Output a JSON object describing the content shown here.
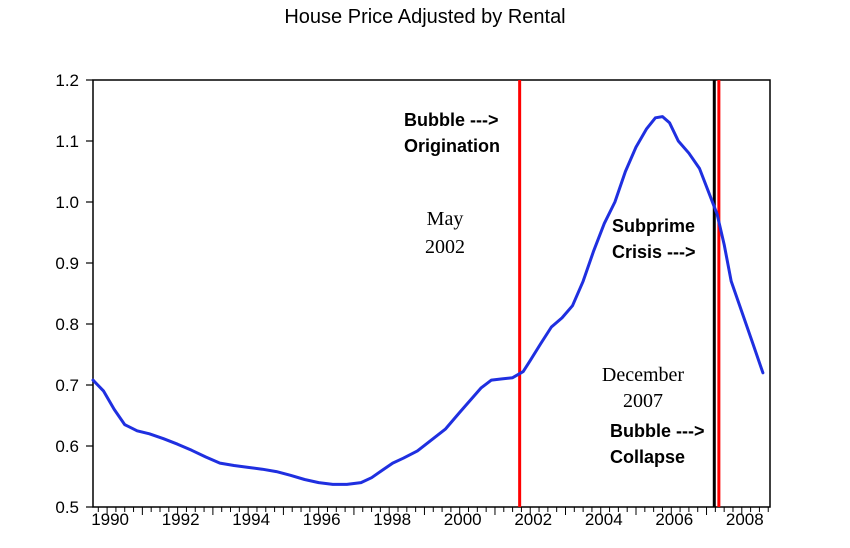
{
  "chart_data": {
    "type": "line",
    "title": "House Price Adjusted by Rental",
    "xlabel": "",
    "ylabel": "",
    "xlim": [
      1989.6,
      2008.8
    ],
    "ylim": [
      0.5,
      1.2
    ],
    "y_ticks": [
      "0.5",
      "0.6",
      "0.7",
      "0.8",
      "0.9",
      "1.0",
      "1.1",
      "1.2"
    ],
    "x_ticks": [
      "1990",
      "1992",
      "1994",
      "1996",
      "1998",
      "2000",
      "2002",
      "2004",
      "2006",
      "2008"
    ],
    "series": [
      {
        "name": "House Price Adjusted by Rental",
        "color": "#1f2fe0",
        "x": [
          1989.6,
          1989.9,
          1990.2,
          1990.5,
          1990.85,
          1991.2,
          1991.6,
          1992.0,
          1992.4,
          1992.8,
          1993.2,
          1993.6,
          1994.0,
          1994.4,
          1994.8,
          1995.2,
          1995.6,
          1996.0,
          1996.4,
          1996.8,
          1997.2,
          1997.5,
          1997.8,
          1998.1,
          1998.4,
          1998.8,
          1999.2,
          1999.6,
          2000.0,
          2000.3,
          2000.6,
          2000.9,
          2001.2,
          2001.5,
          2001.8,
          2002.0,
          2002.3,
          2002.6,
          2002.9,
          2003.2,
          2003.5,
          2003.8,
          2004.1,
          2004.4,
          2004.7,
          2005.0,
          2005.3,
          2005.55,
          2005.75,
          2005.95,
          2006.2,
          2006.5,
          2006.8,
          2007.1,
          2007.3,
          2007.5,
          2007.7,
          2008.0,
          2008.3,
          2008.6
        ],
        "y": [
          0.708,
          0.69,
          0.66,
          0.635,
          0.625,
          0.62,
          0.612,
          0.603,
          0.593,
          0.582,
          0.572,
          0.568,
          0.565,
          0.562,
          0.558,
          0.552,
          0.545,
          0.54,
          0.537,
          0.537,
          0.54,
          0.548,
          0.56,
          0.572,
          0.58,
          0.592,
          0.61,
          0.628,
          0.655,
          0.675,
          0.695,
          0.708,
          0.71,
          0.712,
          0.722,
          0.74,
          0.768,
          0.795,
          0.81,
          0.83,
          0.87,
          0.92,
          0.965,
          1.0,
          1.05,
          1.09,
          1.12,
          1.138,
          1.14,
          1.13,
          1.1,
          1.08,
          1.055,
          1.01,
          0.98,
          0.93,
          0.87,
          0.82,
          0.77,
          0.72
        ]
      }
    ],
    "vertical_lines": [
      {
        "x": 2001.7,
        "color": "#ff0000",
        "label": "May 2002"
      },
      {
        "x": 2007.22,
        "color": "#000000",
        "label": "Subprime Crisis"
      },
      {
        "x": 2007.35,
        "color": "#ff0000",
        "label": "December 2007"
      }
    ],
    "annotations": {
      "bubble_origination": {
        "line1": "Bubble --->",
        "line2": "Origination"
      },
      "may": {
        "line1": "May",
        "line2": "2002"
      },
      "subprime": {
        "line1": "Subprime",
        "line2": "Crisis --->"
      },
      "december": {
        "line1": "December",
        "line2": "2007"
      },
      "bubble_collapse": {
        "line1": "Bubble --->",
        "line2": "Collapse"
      }
    }
  }
}
